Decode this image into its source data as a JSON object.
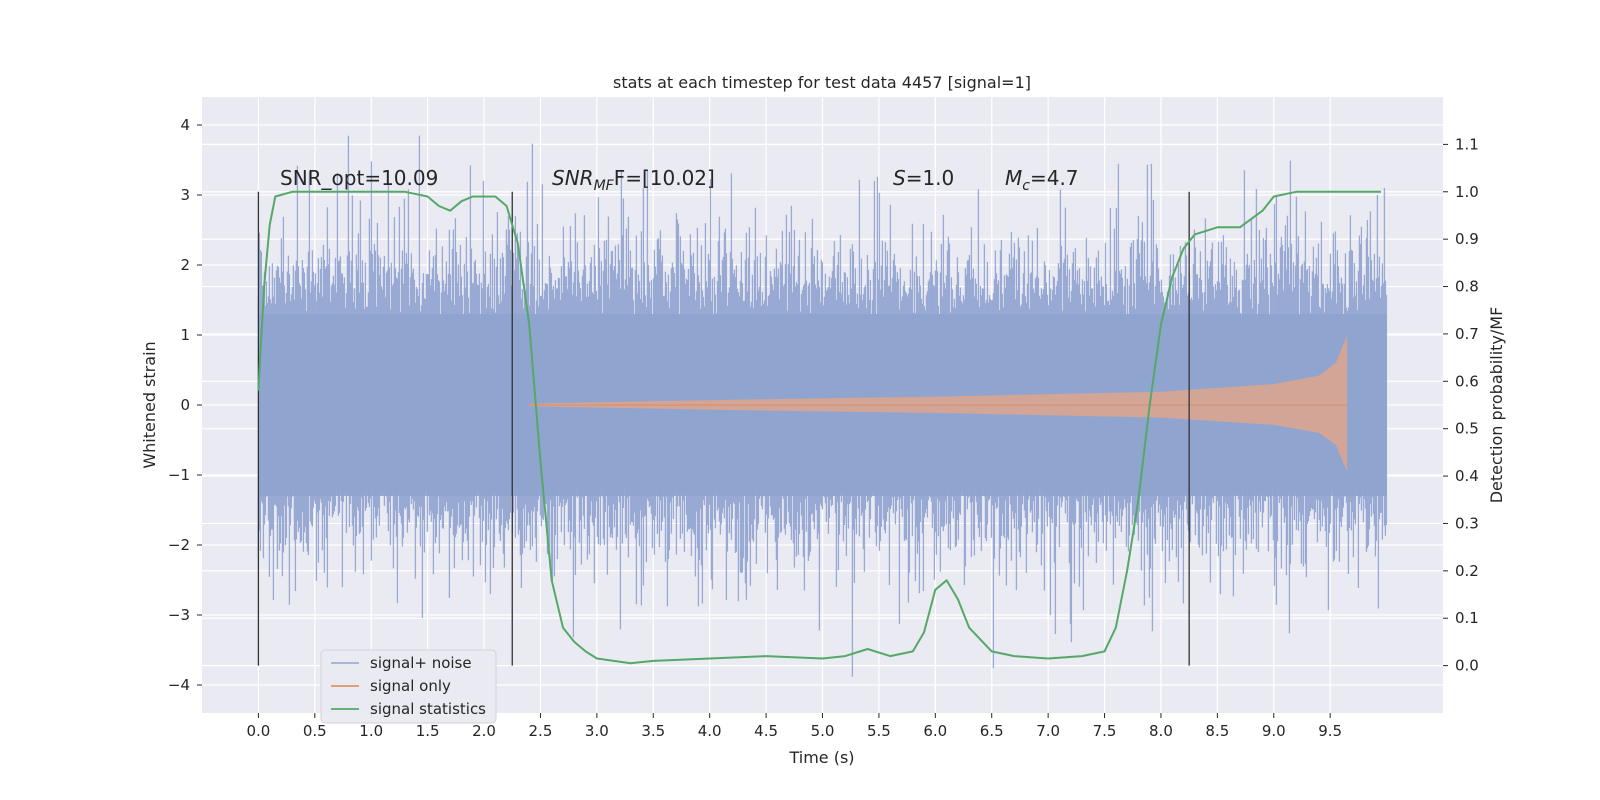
{
  "chart_data": {
    "type": "line",
    "title": "stats at each timestep for test data 4457 [signal=1]",
    "xlabel": "Time (s)",
    "ylabel": "Whitened strain",
    "y2label": "Detection probability/MF",
    "xlim": [
      -0.5,
      10.5
    ],
    "ylim": [
      -4.4,
      4.4
    ],
    "y2lim": [
      -0.1,
      1.2
    ],
    "x_ticks": [
      0.0,
      0.5,
      1.0,
      1.5,
      2.0,
      2.5,
      3.0,
      3.5,
      4.0,
      4.5,
      5.0,
      5.5,
      6.0,
      6.5,
      7.0,
      7.5,
      8.0,
      8.5,
      9.0,
      9.5
    ],
    "x_tick_labels": [
      "0.0",
      "0.5",
      "1.0",
      "1.5",
      "2.0",
      "2.5",
      "3.0",
      "3.5",
      "4.0",
      "4.5",
      "5.0",
      "5.5",
      "6.0",
      "6.5",
      "7.0",
      "7.5",
      "8.0",
      "8.5",
      "9.0",
      "9.5"
    ],
    "y_ticks": [
      4,
      3,
      2,
      1,
      0,
      -1,
      -2,
      -3,
      -4
    ],
    "y_tick_labels": [
      "4",
      "3",
      "2",
      "1",
      "0",
      "−1",
      "−2",
      "−3",
      "−4"
    ],
    "y2_ticks": [
      1.1,
      1.0,
      0.9,
      0.8,
      0.7,
      0.6,
      0.5,
      0.4,
      0.3,
      0.2,
      0.1,
      0.0
    ],
    "y2_tick_labels": [
      "1.1",
      "1.0",
      "0.9",
      "0.8",
      "0.7",
      "0.6",
      "0.5",
      "0.4",
      "0.3",
      "0.2",
      "0.1",
      "0.0"
    ],
    "grid": true,
    "legend_position": "lower-left",
    "annotations": {
      "snr_opt": "SNR_opt=10.09",
      "snr_mf_main": "SNR",
      "snr_mf_sub": "MF",
      "snr_mf_value": "F=[10.02]",
      "s_main": "S",
      "s_value": "=1.0",
      "mc_main": "M",
      "mc_sub": "c",
      "mc_value": "=4.7"
    },
    "vertical_lines_x": [
      0.0,
      2.25,
      8.25
    ],
    "series": [
      {
        "name": "signal+ noise",
        "color": "#8fa3cf",
        "axis": "left",
        "style": "noise",
        "x_range": [
          0.0,
          10.0
        ],
        "typical_amplitude": [
          -1.9,
          1.9
        ],
        "extreme_range": [
          -4.1,
          4.1
        ]
      },
      {
        "name": "signal only",
        "color": "#dd8452",
        "axis": "left",
        "style": "chirp",
        "x_range": [
          2.4,
          9.65
        ],
        "envelope": [
          {
            "x": 2.4,
            "y": 0.02
          },
          {
            "x": 4.0,
            "y": 0.07
          },
          {
            "x": 6.0,
            "y": 0.12
          },
          {
            "x": 8.0,
            "y": 0.19
          },
          {
            "x": 9.0,
            "y": 0.3
          },
          {
            "x": 9.4,
            "y": 0.42
          },
          {
            "x": 9.55,
            "y": 0.6
          },
          {
            "x": 9.65,
            "y": 1.0
          }
        ]
      },
      {
        "name": "signal statistics",
        "color": "#55a868",
        "axis": "right",
        "style": "line",
        "x": [
          0.0,
          0.05,
          0.1,
          0.15,
          0.3,
          0.5,
          1.0,
          1.3,
          1.5,
          1.6,
          1.7,
          1.8,
          1.9,
          2.0,
          2.1,
          2.2,
          2.3,
          2.4,
          2.5,
          2.6,
          2.7,
          2.8,
          2.9,
          3.0,
          3.3,
          3.5,
          4.0,
          4.5,
          5.0,
          5.2,
          5.4,
          5.6,
          5.8,
          5.9,
          6.0,
          6.1,
          6.2,
          6.3,
          6.5,
          6.7,
          7.0,
          7.3,
          7.5,
          7.6,
          7.7,
          7.8,
          7.9,
          8.0,
          8.1,
          8.2,
          8.3,
          8.5,
          8.7,
          8.9,
          9.0,
          9.2,
          9.5,
          9.95
        ],
        "y": [
          0.58,
          0.8,
          0.93,
          0.99,
          1.0,
          1.0,
          1.0,
          1.0,
          0.99,
          0.97,
          0.96,
          0.98,
          0.99,
          0.99,
          0.99,
          0.97,
          0.89,
          0.72,
          0.43,
          0.18,
          0.08,
          0.05,
          0.03,
          0.015,
          0.005,
          0.01,
          0.015,
          0.02,
          0.015,
          0.02,
          0.035,
          0.02,
          0.03,
          0.07,
          0.16,
          0.18,
          0.14,
          0.08,
          0.03,
          0.02,
          0.015,
          0.02,
          0.03,
          0.08,
          0.2,
          0.35,
          0.55,
          0.72,
          0.82,
          0.88,
          0.91,
          0.925,
          0.925,
          0.96,
          0.99,
          1.0,
          1.0,
          1.0
        ]
      }
    ]
  }
}
